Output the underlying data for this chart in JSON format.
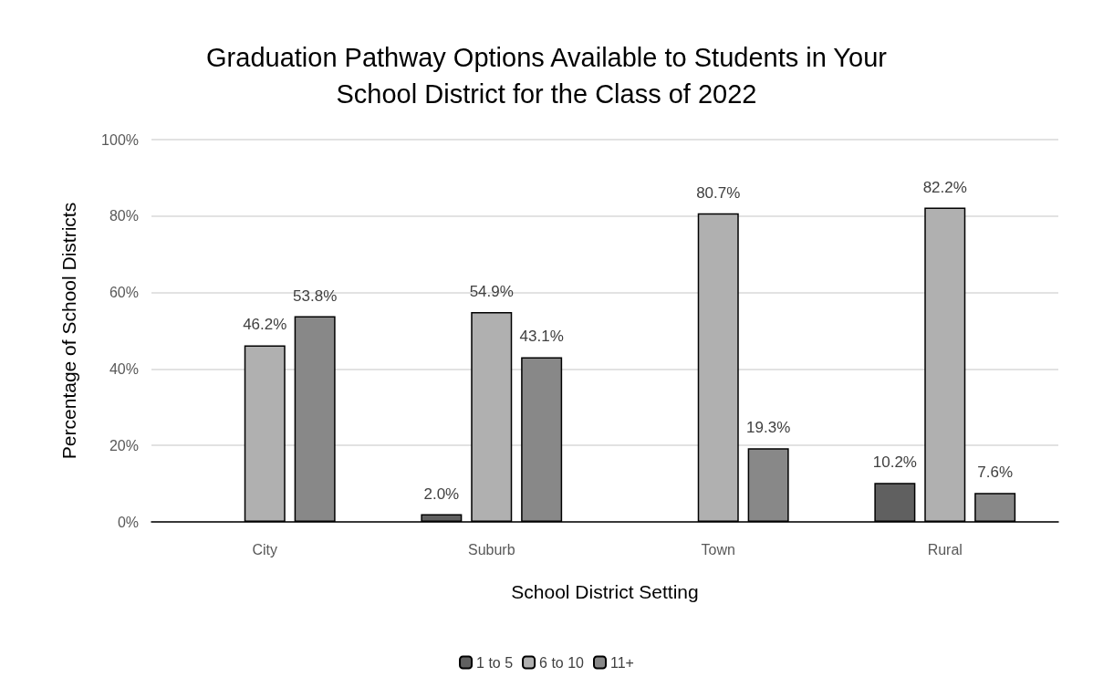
{
  "chart_data": {
    "type": "bar",
    "title": "Graduation Pathway Options Available to Students in Your\nSchool District for the Class of 2022",
    "xlabel": "School District Setting",
    "ylabel": "Percentage of School Districts",
    "categories": [
      "City",
      "Suburb",
      "Town",
      "Rural"
    ],
    "series": [
      {
        "name": "1 to 5",
        "color": "#606060",
        "values": [
          null,
          2.0,
          null,
          10.2
        ],
        "value_labels": [
          null,
          "2.0%",
          null,
          "10.2%"
        ]
      },
      {
        "name": "6 to 10",
        "color": "#b0b0b0",
        "values": [
          46.2,
          54.9,
          80.7,
          82.2
        ],
        "value_labels": [
          "46.2%",
          "54.9%",
          "80.7%",
          "82.2%"
        ]
      },
      {
        "name": "11+",
        "color": "#888888",
        "values": [
          53.8,
          43.1,
          19.3,
          7.6
        ],
        "value_labels": [
          "53.8%",
          "43.1%",
          "19.3%",
          "7.6%"
        ]
      }
    ],
    "ylim": [
      0,
      100
    ],
    "yticks": [
      {
        "value": 0,
        "label": "0%"
      },
      {
        "value": 20,
        "label": "20%"
      },
      {
        "value": 40,
        "label": "40%"
      },
      {
        "value": 60,
        "label": "60%"
      },
      {
        "value": 80,
        "label": "80%"
      },
      {
        "value": 100,
        "label": "100%"
      }
    ],
    "grid": "y",
    "legend": "bottom"
  }
}
